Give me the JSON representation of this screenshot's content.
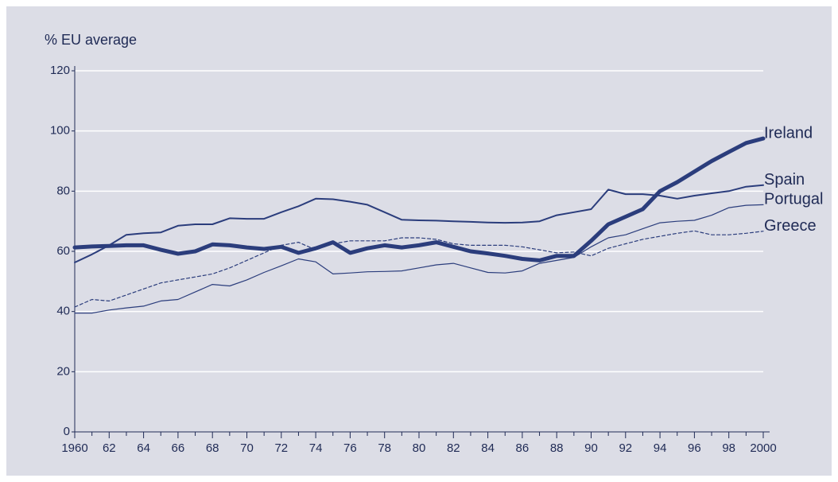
{
  "chart_data": {
    "type": "line",
    "y_label": "% EU average",
    "x": [
      1960,
      1961,
      1962,
      1963,
      1964,
      1965,
      1966,
      1967,
      1968,
      1969,
      1970,
      1971,
      1972,
      1973,
      1974,
      1975,
      1976,
      1977,
      1978,
      1979,
      1980,
      1981,
      1982,
      1983,
      1984,
      1985,
      1986,
      1987,
      1988,
      1989,
      1990,
      1991,
      1992,
      1993,
      1994,
      1995,
      1996,
      1997,
      1998,
      1999,
      2000
    ],
    "xlim": [
      1960,
      2000
    ],
    "xticks": [
      1960,
      {
        "value": 1962,
        "label": "62"
      },
      {
        "value": 1964,
        "label": "64"
      },
      {
        "value": 1966,
        "label": "66"
      },
      {
        "value": 1968,
        "label": "68"
      },
      {
        "value": 1970,
        "label": "70"
      },
      {
        "value": 1972,
        "label": "72"
      },
      {
        "value": 1974,
        "label": "74"
      },
      {
        "value": 1976,
        "label": "76"
      },
      {
        "value": 1978,
        "label": "78"
      },
      {
        "value": 1980,
        "label": "80"
      },
      {
        "value": 1982,
        "label": "82"
      },
      {
        "value": 1984,
        "label": "84"
      },
      {
        "value": 1986,
        "label": "86"
      },
      {
        "value": 1988,
        "label": "88"
      },
      {
        "value": 1990,
        "label": "90"
      },
      {
        "value": 1992,
        "label": "92"
      },
      {
        "value": 1994,
        "label": "94"
      },
      {
        "value": 1996,
        "label": "96"
      },
      {
        "value": 1998,
        "label": "98"
      },
      2000
    ],
    "xminorticks": [
      1961,
      1963,
      1965,
      1967,
      1969,
      1971,
      1973,
      1975,
      1977,
      1979,
      1981,
      1983,
      1985,
      1987,
      1989,
      1991,
      1993,
      1995,
      1997,
      1999
    ],
    "ylim": [
      0,
      120
    ],
    "yticks": [
      0,
      20,
      40,
      60,
      80,
      100,
      120
    ],
    "grid": true,
    "series": [
      {
        "name": "Ireland",
        "color": "#2b3d7c",
        "width": 5,
        "dash": false,
        "values": [
          61.3,
          61.6,
          61.8,
          62,
          62,
          60.5,
          59.2,
          60,
          62.3,
          62,
          61.3,
          60.8,
          61.5,
          59.5,
          61,
          63,
          59.5,
          61,
          62,
          61.3,
          62,
          63,
          61.5,
          60,
          59.3,
          58.5,
          57.5,
          57,
          58.5,
          58.5,
          63.5,
          69,
          71.5,
          74,
          80,
          83,
          86.5,
          90,
          93,
          96,
          97.5
        ]
      },
      {
        "name": "Spain",
        "color": "#2b3d7c",
        "width": 2,
        "dash": false,
        "values": [
          56.3,
          59,
          62,
          65.5,
          66,
          66.3,
          68.5,
          69,
          69,
          71,
          70.8,
          70.8,
          73,
          75,
          77.5,
          77.3,
          76.5,
          75.5,
          73,
          70.5,
          70.3,
          70.2,
          70,
          69.8,
          69.6,
          69.5,
          69.6,
          70,
          72,
          73,
          74,
          80.5,
          79,
          79,
          78.5,
          77.5,
          78.5,
          79.3,
          80,
          81.5,
          82
        ]
      },
      {
        "name": "Portugal",
        "color": "#2b3d7c",
        "width": 1.2,
        "dash": false,
        "values": [
          39.5,
          39.5,
          40.5,
          41.2,
          41.8,
          43.5,
          44,
          46.5,
          49,
          48.5,
          50.5,
          53,
          55.2,
          57.5,
          56.5,
          52.5,
          52.8,
          53.2,
          53.3,
          53.5,
          54.5,
          55.5,
          56,
          54.5,
          53,
          52.8,
          53.5,
          56,
          57,
          58,
          61.5,
          64.5,
          65.5,
          67.5,
          69.5,
          70,
          70.3,
          72,
          74.5,
          75.3,
          75.5
        ]
      },
      {
        "name": "Greece",
        "color": "#2b3d7c",
        "width": 1.2,
        "dash": true,
        "values": [
          41.5,
          44,
          43.5,
          45.5,
          47.5,
          49.5,
          50.5,
          51.5,
          52.5,
          54.5,
          57,
          59.5,
          62,
          63,
          60.5,
          62.5,
          63.5,
          63.5,
          63.5,
          64.5,
          64.5,
          64,
          62.5,
          62,
          62,
          62,
          61.5,
          60.5,
          59.5,
          59.8,
          58.5,
          61,
          62.5,
          64,
          65,
          66,
          66.8,
          65.5,
          65.5,
          66,
          66.7
        ]
      }
    ]
  }
}
